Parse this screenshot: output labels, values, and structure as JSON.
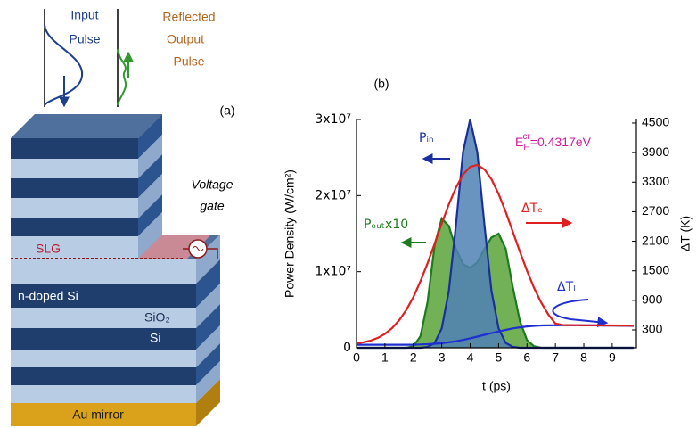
{
  "diagram": {
    "label": "(a)",
    "input_pulse": [
      "Input",
      "Pulse"
    ],
    "output_pulse": [
      "Reflected",
      "Output",
      "Pulse"
    ],
    "voltage_gate": [
      "Voltage",
      "gate"
    ],
    "layers": {
      "slg": "SLG",
      "n_doped": "n-doped Si",
      "sio2": "SiO₂",
      "si": "Si",
      "mirror": "Au mirror"
    }
  },
  "chart_data": {
    "type": "line",
    "panel_label": "(b)",
    "x_label": "t (ps)",
    "y_label": "Power Density (W/cm²)",
    "y2_label": "ΔT (K)",
    "annotation": {
      "base": "E",
      "sub": "F",
      "sup": "cr",
      "text": "=0.4317eV",
      "color": "#d01c9a"
    },
    "xlim": [
      0,
      9.85
    ],
    "xticks": [
      0,
      1,
      2,
      3,
      4,
      5,
      6,
      7,
      8,
      9
    ],
    "ylim": [
      0,
      30000000
    ],
    "yticks": [
      {
        "value": 0,
        "label": "0"
      },
      {
        "value": 10000000,
        "label": "1x10⁷"
      },
      {
        "value": 20000000,
        "label": "2x10⁷"
      },
      {
        "value": 30000000,
        "label": "3x10⁷"
      }
    ],
    "y2lim": [
      -62,
      4572
    ],
    "y2ticks": [
      300,
      900,
      1500,
      2100,
      2700,
      3300,
      3900,
      4500
    ],
    "x": [
      0,
      0.25,
      0.5,
      0.75,
      1,
      1.25,
      1.5,
      1.75,
      2,
      2.25,
      2.5,
      2.75,
      3,
      3.25,
      3.5,
      3.75,
      4,
      4.25,
      4.5,
      4.75,
      5,
      5.25,
      5.5,
      5.75,
      6,
      6.25,
      6.5,
      6.75,
      7,
      7.25,
      7.5,
      7.75,
      8,
      8.25,
      8.5,
      8.75,
      9,
      9.25,
      9.5,
      9.75
    ],
    "series": [
      {
        "name": "Pᵢₙ",
        "color": "#1a2f9e",
        "fill": "#4f81b4",
        "kind": "area",
        "values": [
          0,
          0,
          0,
          0,
          0,
          0,
          0,
          0,
          0,
          0,
          120000,
          630000,
          2540000,
          7480000,
          16200000,
          25700000,
          30000000,
          25700000,
          16200000,
          7480000,
          2540000,
          630000,
          120000,
          0,
          0,
          0,
          0,
          0,
          0,
          0,
          0,
          0,
          0,
          0,
          0,
          0,
          0,
          0,
          0,
          0
        ]
      },
      {
        "name": "Pₒᵤₜx10",
        "color": "#1e7a1e",
        "fill": "#5aa33a",
        "kind": "area",
        "values": [
          0,
          0,
          0,
          0,
          0,
          0,
          0,
          0,
          200000,
          1500000,
          6000000,
          13500000,
          17000000,
          16000000,
          13000000,
          11000000,
          10500000,
          11200000,
          13000000,
          14500000,
          15000000,
          13000000,
          8000000,
          3500000,
          1000000,
          200000,
          0,
          0,
          0,
          0,
          0,
          0,
          0,
          0,
          0,
          0,
          0,
          0,
          0,
          0
        ]
      },
      {
        "name": "ΔTₑ",
        "color": "#e02020",
        "kind": "line",
        "axis": "y2",
        "values": [
          29,
          50,
          85,
          139,
          220,
          335,
          494,
          703,
          967,
          1286,
          1652,
          2050,
          2459,
          2850,
          3191,
          3453,
          3610,
          3650,
          3561,
          3359,
          3061,
          2697,
          2296,
          1889,
          1500,
          1152,
          855,
          613,
          430,
          400,
          398,
          396,
          395,
          394,
          392,
          391,
          390,
          389,
          387,
          385
        ]
      },
      {
        "name": "ΔTₗ",
        "color": "#1f2fd0",
        "kind": "line",
        "axis": "y2",
        "values": [
          0,
          0,
          0,
          0,
          0,
          0,
          0,
          0,
          0,
          5,
          10,
          20,
          30,
          48,
          70,
          98,
          130,
          165,
          200,
          235,
          270,
          300,
          330,
          352,
          370,
          382,
          390,
          393,
          395,
          395,
          395,
          394,
          393,
          392,
          390,
          389,
          387,
          385,
          383,
          381
        ]
      }
    ]
  }
}
